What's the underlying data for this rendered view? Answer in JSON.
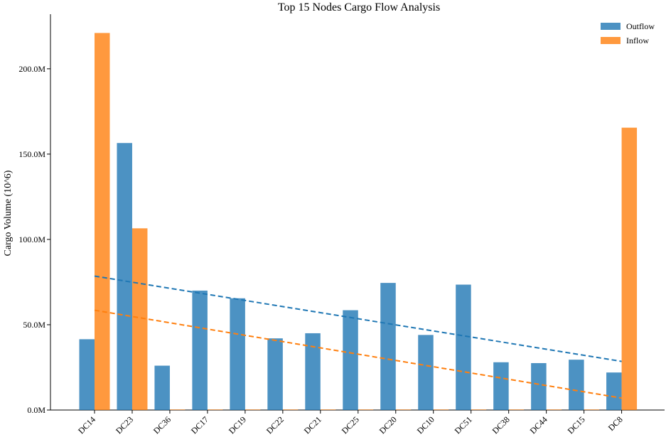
{
  "chart_data": {
    "type": "bar",
    "title": "Top 15 Nodes Cargo Flow Analysis",
    "xlabel": "",
    "ylabel": "Cargo Volume (10^6)",
    "ylim": [
      0,
      232
    ],
    "y_ticks": [
      0,
      50,
      100,
      150,
      200
    ],
    "y_tick_labels": [
      "0.0M",
      "50.0M",
      "100.0M",
      "150.0M",
      "200.0M"
    ],
    "categories": [
      "DC14",
      "DC23",
      "DC36",
      "DC17",
      "DC19",
      "DC22",
      "DC21",
      "DC25",
      "DC20",
      "DC10",
      "DC51",
      "DC38",
      "DC44",
      "DC15",
      "DC8"
    ],
    "series": [
      {
        "name": "Outflow",
        "color": "#1f77b4",
        "values": [
          41.5,
          156.5,
          26,
          70,
          65.5,
          42,
          45,
          58.5,
          74.5,
          44,
          73.5,
          28,
          27.5,
          29.5,
          22
        ]
      },
      {
        "name": "Inflow",
        "color": "#ff7f0e",
        "values": [
          221,
          106.5,
          0.3,
          0.3,
          0.3,
          0.3,
          0.3,
          0.3,
          0.3,
          0.3,
          0.3,
          0.3,
          0.3,
          0.3,
          165.5
        ]
      }
    ],
    "trendlines": [
      {
        "series": "Outflow",
        "color": "#1f77b4",
        "style": "dashed",
        "start": 78.5,
        "end": 28.5
      },
      {
        "series": "Inflow",
        "color": "#ff7f0e",
        "style": "dashed",
        "start": 58.5,
        "end": 7
      }
    ],
    "legend_position": "top-right",
    "grid": false
  }
}
